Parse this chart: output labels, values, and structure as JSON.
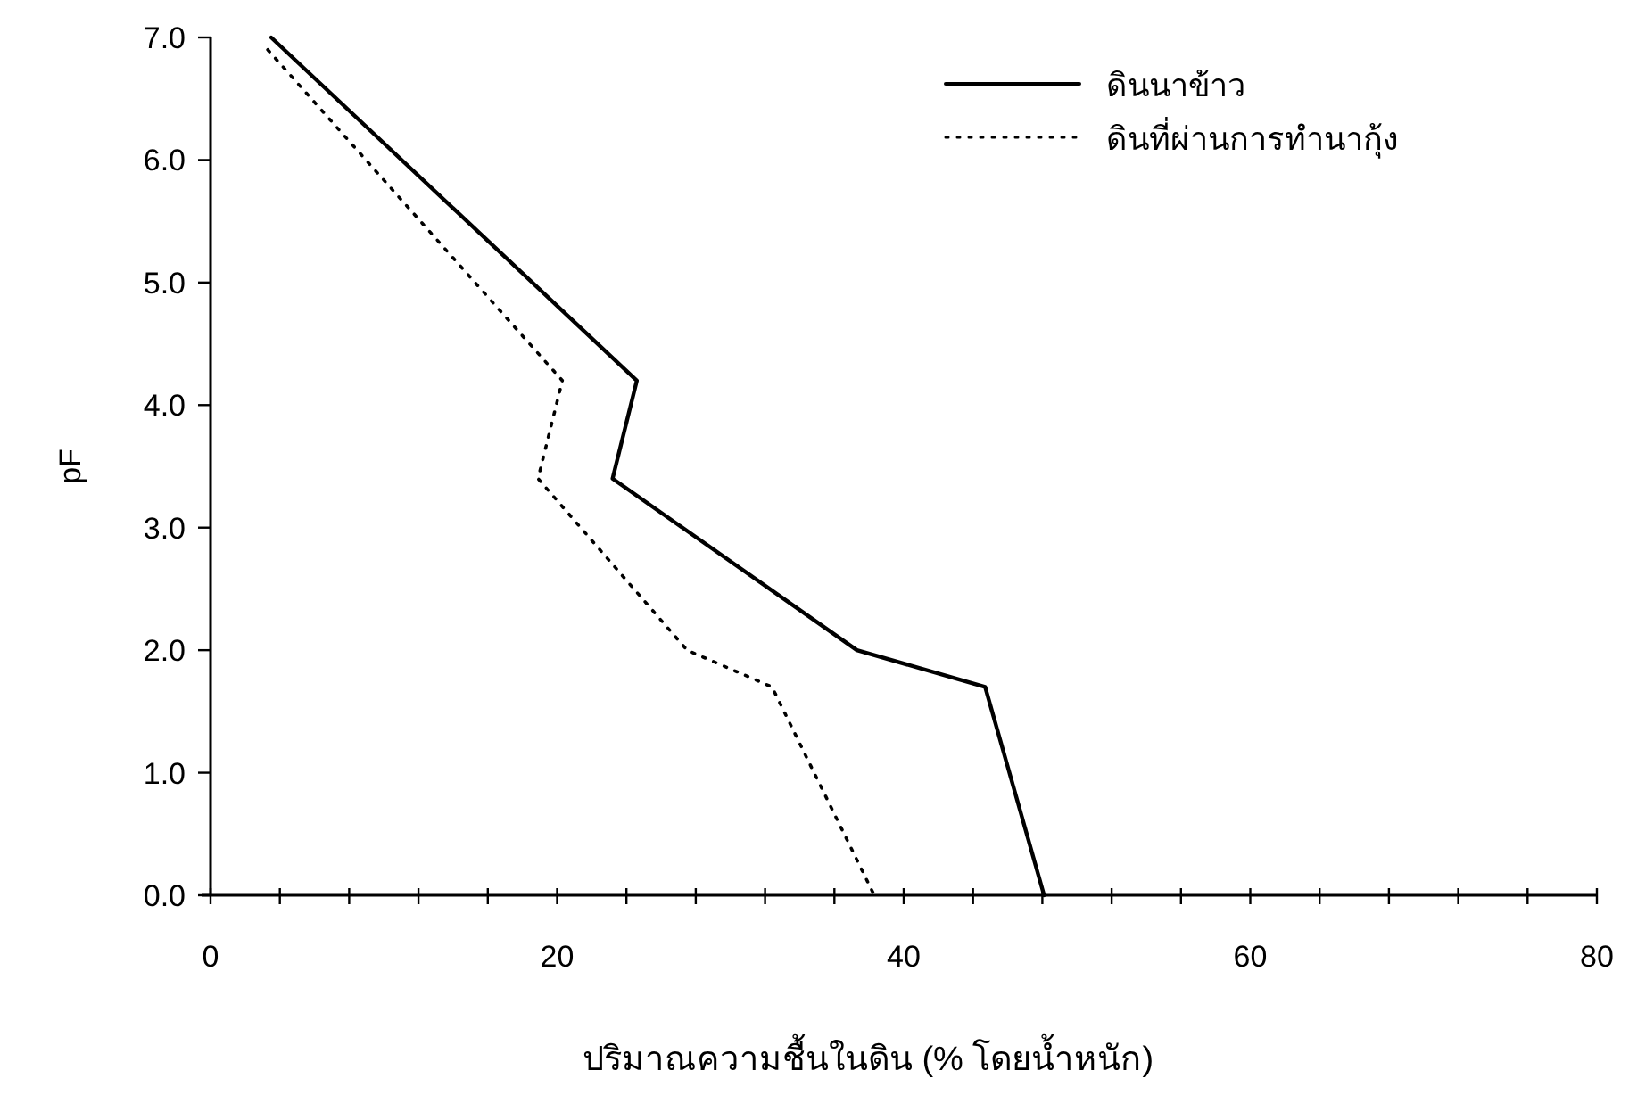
{
  "chart_data": {
    "type": "line",
    "xlabel": "ปริมาณความชื้นในดิน (% โดยน้ำหนัก)",
    "ylabel": "pF",
    "xlim": [
      0,
      80
    ],
    "xticks": [
      0,
      {
        "value": 4,
        "label": null
      },
      {
        "value": 8,
        "label": null
      },
      {
        "value": 12,
        "label": null
      },
      {
        "value": 16,
        "label": null
      },
      20,
      {
        "value": 24,
        "label": null
      },
      {
        "value": 28,
        "label": null
      },
      {
        "value": 32,
        "label": null
      },
      {
        "value": 36,
        "label": null
      },
      40,
      {
        "value": 44,
        "label": null
      },
      {
        "value": 48,
        "label": null
      },
      {
        "value": 52,
        "label": null
      },
      {
        "value": 56,
        "label": null
      },
      60,
      {
        "value": 64,
        "label": null
      },
      {
        "value": 68,
        "label": null
      },
      {
        "value": 72,
        "label": null
      },
      {
        "value": 76,
        "label": null
      },
      80
    ],
    "ylim": [
      0,
      7
    ],
    "yticks": [
      {
        "value": 0,
        "label": "0.0"
      },
      {
        "value": 1,
        "label": "1.0"
      },
      {
        "value": 2,
        "label": "2.0"
      },
      {
        "value": 3,
        "label": "3.0"
      },
      {
        "value": 4,
        "label": "4.0"
      },
      {
        "value": 5,
        "label": "5.0"
      },
      {
        "value": 6,
        "label": "6.0"
      },
      {
        "value": 7,
        "label": "7.0"
      }
    ],
    "legend": "top right",
    "grid": false,
    "marker": "none",
    "series": [
      {
        "name": "ดินนาข้าว",
        "color": "#000000",
        "line_style": "solid",
        "x": [
          3.5,
          24.6,
          23.2,
          37.3,
          44.7,
          48.1
        ],
        "values": [
          7.0,
          4.2,
          3.4,
          2.0,
          1.7,
          0.0
        ]
      },
      {
        "name": "ดินที่ผ่านการทำนากุ้ง",
        "color": "#000000",
        "line_style": "dotted",
        "x": [
          3.3,
          20.3,
          18.9,
          27.5,
          32.4,
          38.3
        ],
        "values": [
          6.9,
          4.2,
          3.4,
          2.0,
          1.7,
          0.0
        ]
      }
    ]
  }
}
